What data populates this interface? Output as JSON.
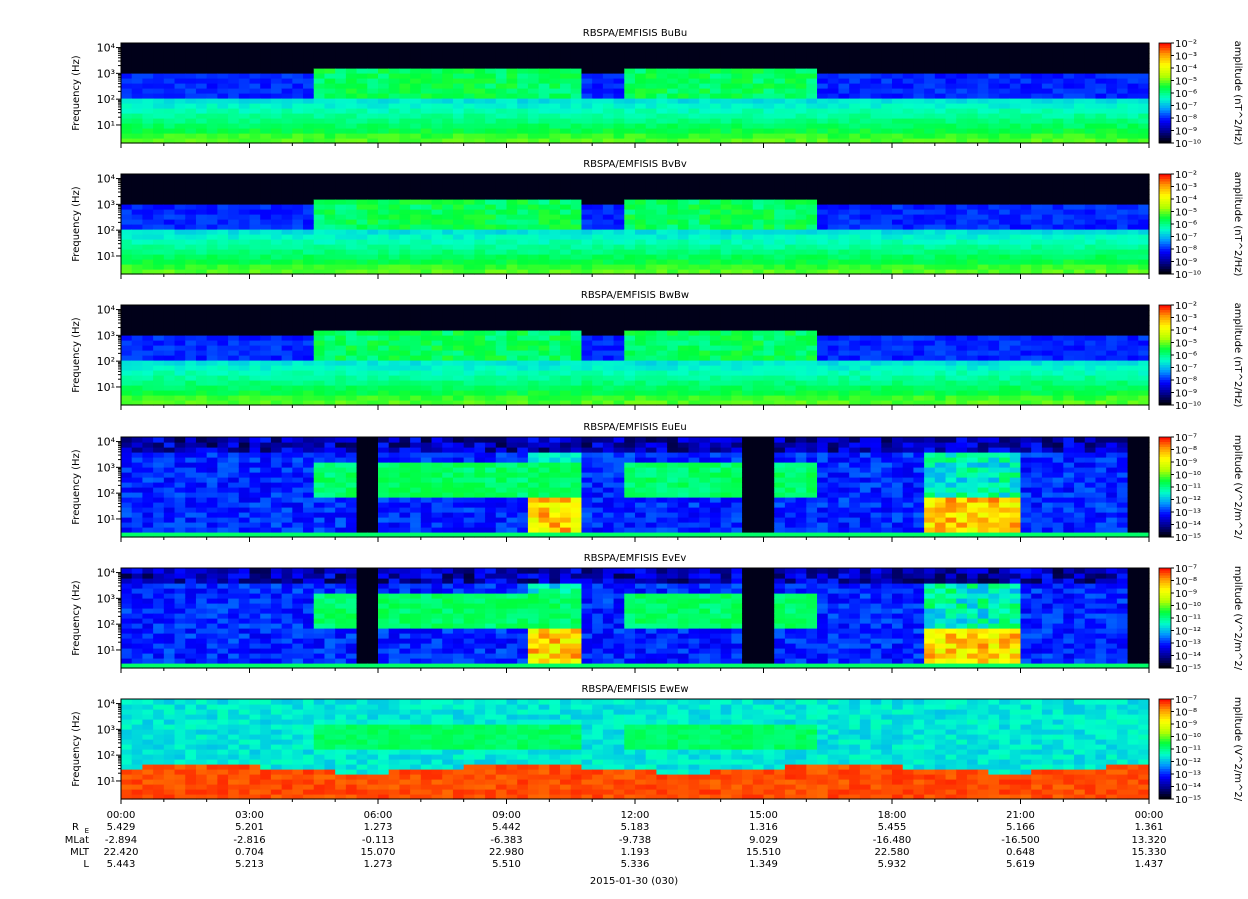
{
  "chart_data": {
    "type": "heatmap",
    "panels": [
      {
        "title": "RBSPA/EMFISIS  BuBu",
        "ylabel": "Frequency (Hz)",
        "colorbar_label": "amplitude (nT^2/Hz)",
        "cbar_ticks": [
          "10⁻²",
          "10⁻³",
          "10⁻⁴",
          "10⁻⁵",
          "10⁻⁶",
          "10⁻⁷",
          "10⁻⁸",
          "10⁻⁹",
          "10⁻¹⁰"
        ],
        "scale": "log",
        "clim": [
          1e-10,
          0.01
        ]
      },
      {
        "title": "RBSPA/EMFISIS  BvBv",
        "ylabel": "Frequency (Hz)",
        "colorbar_label": "amplitude (nT^2/Hz)",
        "cbar_ticks": [
          "10⁻²",
          "10⁻³",
          "10⁻⁴",
          "10⁻⁵",
          "10⁻⁶",
          "10⁻⁷",
          "10⁻⁸",
          "10⁻⁹",
          "10⁻¹⁰"
        ],
        "scale": "log",
        "clim": [
          1e-10,
          0.01
        ]
      },
      {
        "title": "RBSPA/EMFISIS  BwBw",
        "ylabel": "Frequency (Hz)",
        "colorbar_label": "amplitude (nT^2/Hz)",
        "cbar_ticks": [
          "10⁻²",
          "10⁻³",
          "10⁻⁴",
          "10⁻⁵",
          "10⁻⁶",
          "10⁻⁷",
          "10⁻⁸",
          "10⁻⁹",
          "10⁻¹⁰"
        ],
        "scale": "log",
        "clim": [
          1e-10,
          0.01
        ]
      },
      {
        "title": "RBSPA/EMFISIS  EuEu",
        "ylabel": "Frequency (Hz)",
        "colorbar_label": "mplitude (V^2/m^2/",
        "cbar_ticks": [
          "10⁻⁷",
          "10⁻⁸",
          "10⁻⁹",
          "10⁻¹⁰",
          "10⁻¹¹",
          "10⁻¹²",
          "10⁻¹³",
          "10⁻¹⁴",
          "10⁻¹⁵"
        ],
        "scale": "log",
        "clim": [
          1e-15,
          1e-07
        ]
      },
      {
        "title": "RBSPA/EMFISIS  EvEv",
        "ylabel": "Frequency (Hz)",
        "colorbar_label": "mplitude (V^2/m^2/",
        "cbar_ticks": [
          "10⁻⁷",
          "10⁻⁸",
          "10⁻⁹",
          "10⁻¹⁰",
          "10⁻¹¹",
          "10⁻¹²",
          "10⁻¹³",
          "10⁻¹⁴",
          "10⁻¹⁵"
        ],
        "scale": "log",
        "clim": [
          1e-15,
          1e-07
        ]
      },
      {
        "title": "RBSPA/EMFISIS  EwEw",
        "ylabel": "Frequency (Hz)",
        "colorbar_label": "mplitude (V^2/m^2/",
        "cbar_ticks": [
          "10⁻⁷",
          "10⁻⁸",
          "10⁻⁹",
          "10⁻¹⁰",
          "10⁻¹¹",
          "10⁻¹²",
          "10⁻¹³",
          "10⁻¹⁴",
          "10⁻¹⁵"
        ],
        "scale": "log",
        "clim": [
          1e-15,
          1e-07
        ]
      }
    ],
    "yaxis": {
      "scale": "log",
      "ticks": [
        "10¹",
        "10²",
        "10³",
        "10⁴"
      ],
      "ylim": [
        2,
        15000
      ]
    },
    "colormap": [
      "#000000",
      "#00008c",
      "#0000ff",
      "#0096ff",
      "#00ffc8",
      "#00ff3c",
      "#b4ff00",
      "#ffff00",
      "#ff9600",
      "#ff0000"
    ],
    "xaxis": {
      "tick_labels": [
        "00:00",
        "03:00",
        "06:00",
        "09:00",
        "12:00",
        "15:00",
        "18:00",
        "21:00",
        "00:00"
      ],
      "date_label": "2015-01-30 (030)",
      "ephemeris": [
        {
          "name": "R",
          "sub": "E",
          "values": [
            "5.429",
            "5.201",
            "1.273",
            "5.442",
            "5.183",
            "1.316",
            "5.455",
            "5.166",
            "1.361"
          ]
        },
        {
          "name": "MLat",
          "sub": "",
          "values": [
            "-2.894",
            "-2.816",
            "-0.113",
            "-6.383",
            "-9.738",
            "9.029",
            "-16.480",
            "-16.500",
            "13.320"
          ]
        },
        {
          "name": "MLT",
          "sub": "",
          "values": [
            "22.420",
            "0.704",
            "15.070",
            "22.980",
            "1.193",
            "15.510",
            "22.580",
            "0.648",
            "15.330"
          ]
        },
        {
          "name": "L",
          "sub": "",
          "values": [
            "5.443",
            "5.213",
            "1.273",
            "5.510",
            "5.336",
            "1.349",
            "5.932",
            "5.619",
            "1.437"
          ]
        }
      ]
    }
  }
}
